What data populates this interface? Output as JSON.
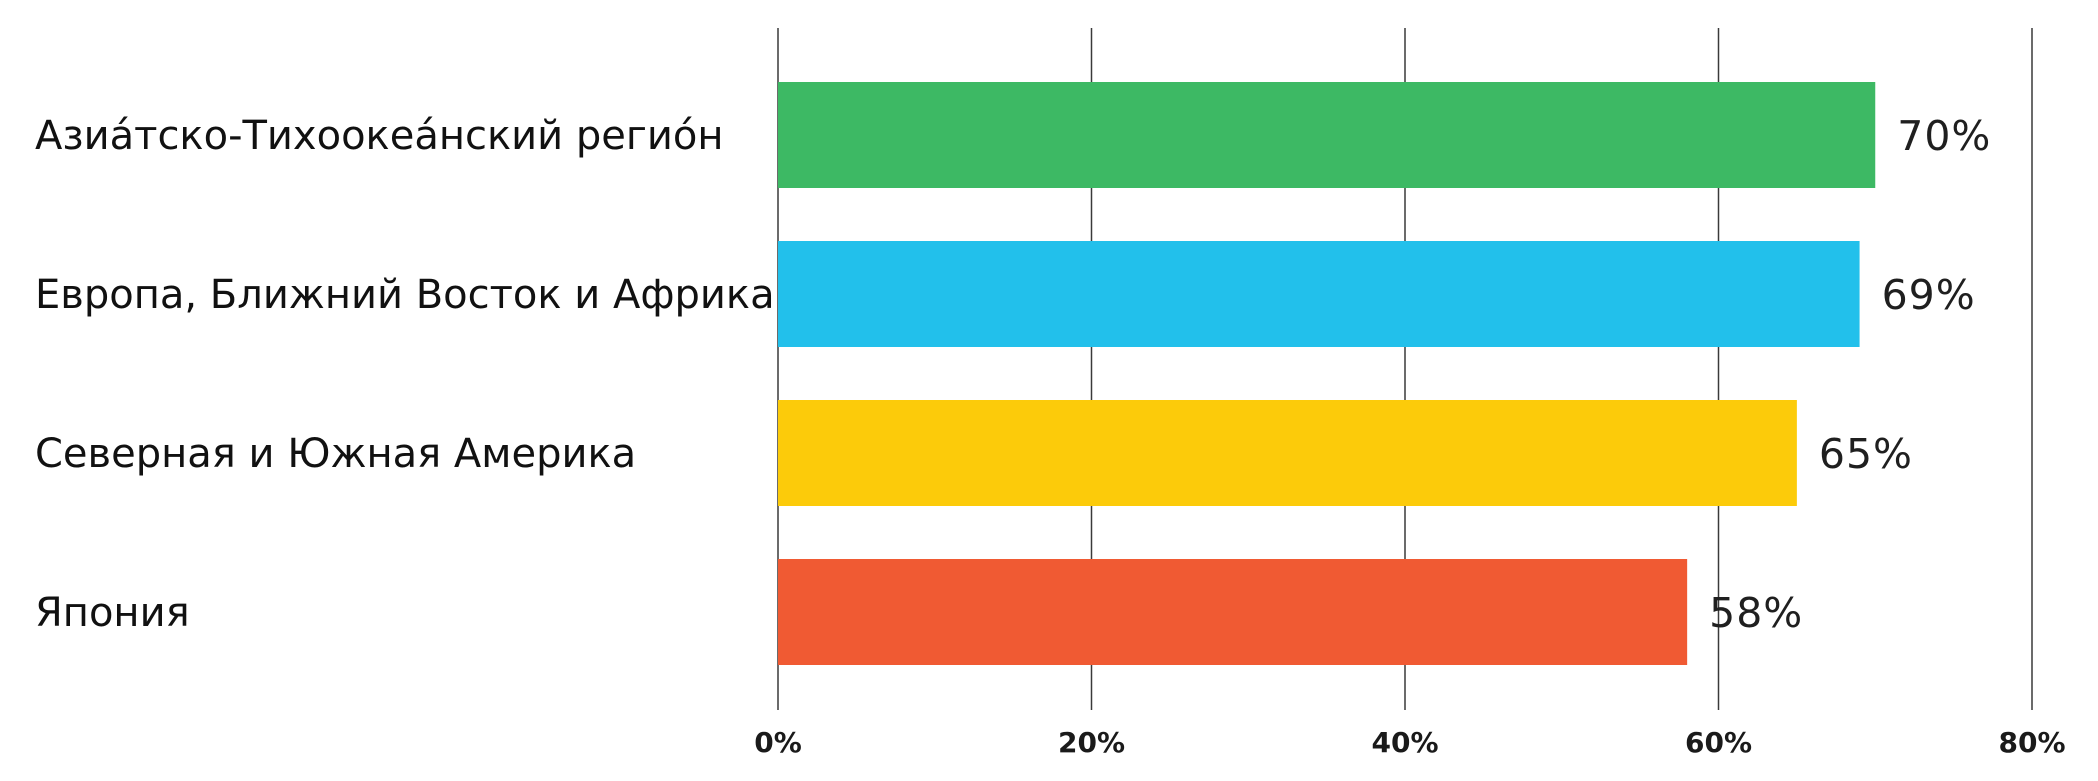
{
  "chart_data": {
    "type": "bar",
    "orientation": "horizontal",
    "title": "",
    "xlabel": "",
    "ylabel": "",
    "categories": [
      "Азиа́тско-Тихоокеа́нский регио́н",
      "Европа, Ближний Восток и Африка",
      "Северная и Южная Америка",
      "Япония"
    ],
    "values": [
      70,
      69,
      65,
      58
    ],
    "value_labels": [
      "70%",
      "69%",
      "65%",
      "58%"
    ],
    "colors": [
      "#3db964",
      "#22c0eb",
      "#fccb0a",
      "#f05a33"
    ],
    "xlim": [
      0,
      80
    ],
    "x_ticks": [
      0,
      20,
      40,
      60,
      80
    ],
    "x_tick_labels": [
      "0%",
      "20%",
      "40%",
      "60%",
      "80%"
    ],
    "grid": "vertical",
    "legend": "none"
  }
}
